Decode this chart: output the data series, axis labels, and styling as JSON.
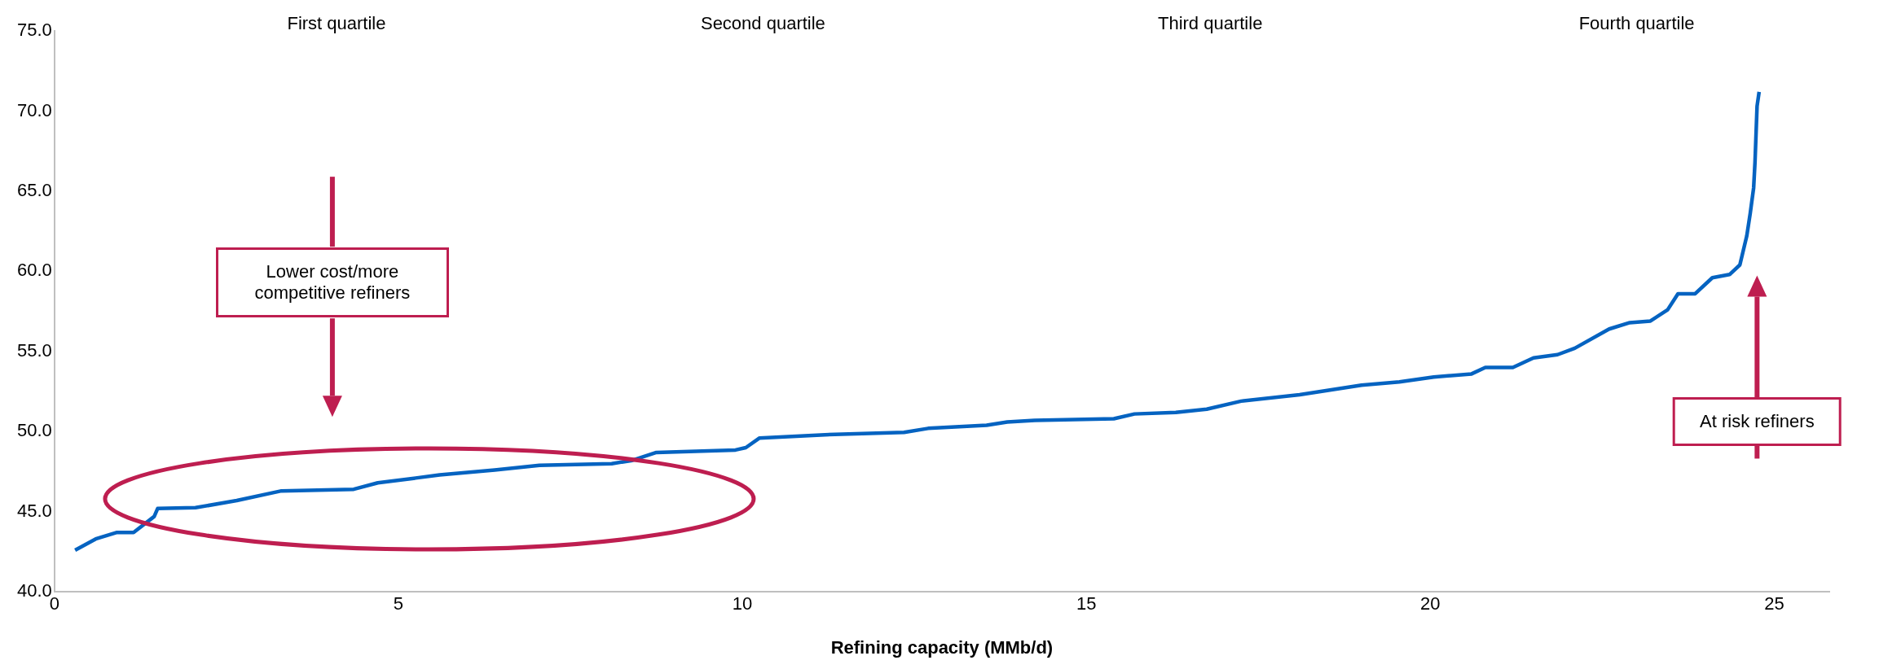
{
  "chart_data": {
    "type": "line",
    "xlabel": "Refining capacity (MMb/d)",
    "x": [
      0.3,
      0.6,
      0.9,
      1.15,
      1.45,
      1.5,
      2.05,
      2.65,
      3.3,
      4.35,
      4.7,
      5.25,
      5.6,
      6.4,
      7.05,
      8.1,
      8.4,
      8.75,
      9.9,
      10.05,
      10.25,
      11.2,
      12.35,
      12.7,
      13.55,
      13.85,
      14.25,
      15.4,
      15.7,
      16.3,
      16.75,
      17.25,
      18.1,
      19.0,
      19.55,
      20.05,
      20.6,
      20.8,
      21.2,
      21.5,
      21.85,
      22.1,
      22.6,
      22.9,
      23.2,
      23.45,
      23.6,
      23.85,
      24.1,
      24.35,
      24.5,
      24.6,
      24.65,
      24.7,
      24.72,
      24.75,
      24.78
    ],
    "series": [
      {
        "color": "#0563c1",
        "values": [
          42.6,
          43.3,
          43.7,
          43.7,
          44.7,
          45.2,
          45.25,
          45.7,
          46.3,
          46.4,
          46.8,
          47.1,
          47.3,
          47.6,
          47.9,
          48.0,
          48.2,
          48.7,
          48.85,
          49.0,
          49.6,
          49.8,
          49.95,
          50.2,
          50.4,
          50.6,
          50.7,
          50.8,
          51.1,
          51.2,
          51.4,
          51.9,
          52.3,
          52.9,
          53.1,
          53.4,
          53.6,
          54.0,
          54.0,
          54.6,
          54.8,
          55.2,
          56.4,
          56.8,
          56.9,
          57.6,
          58.6,
          58.6,
          59.6,
          59.8,
          60.4,
          62.2,
          63.6,
          65.2,
          66.8,
          70.3,
          71.2
        ]
      }
    ],
    "xlim": [
      0,
      25.8
    ],
    "xticks": [
      0,
      5,
      10,
      15,
      20,
      25
    ],
    "ylim": [
      40,
      75
    ],
    "yticks": [
      {
        "value": 40,
        "label": "40.0"
      },
      {
        "value": 45,
        "label": "45.0"
      },
      {
        "value": 50,
        "label": "50.0"
      },
      {
        "value": 55,
        "label": "55.0"
      },
      {
        "value": 60,
        "label": "60.0"
      },
      {
        "value": 65,
        "label": "65.0"
      },
      {
        "value": 70,
        "label": "70.0"
      },
      {
        "value": 75,
        "label": "75.0"
      }
    ],
    "grid": false,
    "legend": false,
    "annotations": [
      "First quartile",
      "Second quartile",
      "Third quartile",
      "Fourth quartile",
      "Lower cost/more competitive refiners",
      "At risk refiners"
    ]
  }
}
